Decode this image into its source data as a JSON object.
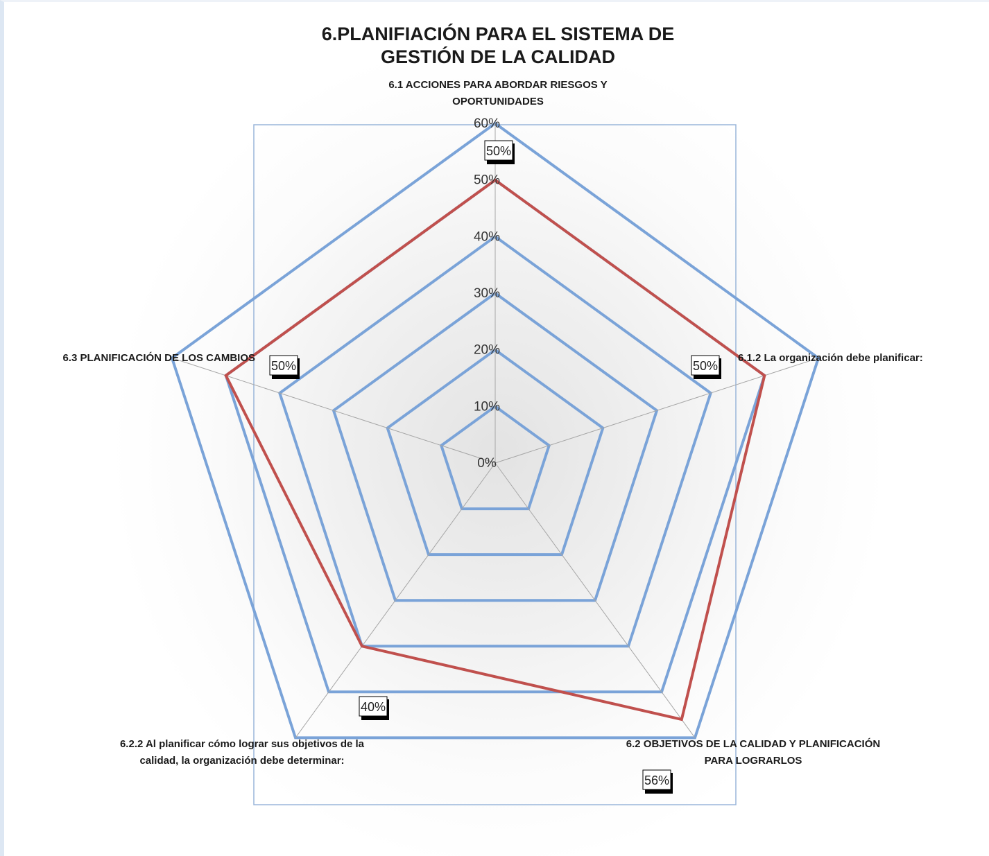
{
  "chart_data": {
    "type": "radar",
    "title": [
      "6.PLANIFIACIÓN  PARA EL SISTEMA DE",
      "GESTIÓN DE LA CALIDAD"
    ],
    "categories": [
      [
        "6.1 ACCIONES PARA ABORDAR RIESGOS Y",
        "OPORTUNIDADES"
      ],
      [
        "6.1.2 La organización debe planificar:"
      ],
      [
        "6.2 OBJETIVOS DE LA CALIDAD Y PLANIFICACIÓN",
        "PARA LOGRARLOS"
      ],
      [
        "6.2.2 Al planificar cómo lograr sus objetivos de la",
        "calidad, la organización debe determinar:"
      ],
      [
        "6.3 PLANIFICACIÓN DE LOS CAMBIOS"
      ]
    ],
    "series": [
      {
        "values": [
          0.5,
          0.5,
          0.56,
          0.4,
          0.5
        ],
        "labels": [
          "50%",
          "50%",
          "56%",
          "40%",
          "50%"
        ]
      }
    ],
    "rlim": [
      0,
      0.6
    ],
    "ticks": [
      0,
      0.1,
      0.2,
      0.3,
      0.4,
      0.5,
      0.6
    ],
    "tick_labels": [
      "0%",
      "10%",
      "20%",
      "30%",
      "40%",
      "50%",
      "60%"
    ],
    "grid": true,
    "colors": {
      "gridline": "#7aa3d8",
      "series": "#c0504d",
      "spoke": "#a6a6a6",
      "plot_border": "#9ab6da"
    }
  }
}
